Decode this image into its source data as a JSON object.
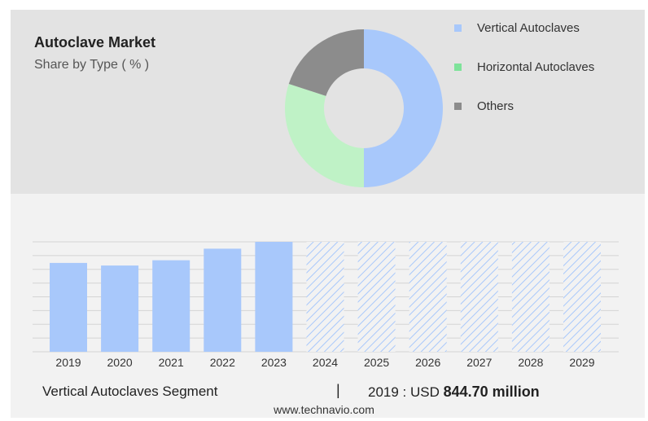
{
  "header": {
    "title": "Autoclave Market",
    "subtitle": "Share by Type ( % )"
  },
  "legend": [
    {
      "label": "Vertical Autoclaves",
      "color": "#a8c8fb"
    },
    {
      "label": "Horizontal Autoclaves",
      "color": "#7ee39a"
    },
    {
      "label": "Others",
      "color": "#8c8c8c"
    }
  ],
  "chart_data": [
    {
      "type": "pie",
      "variant": "donut",
      "categories": [
        "Vertical Autoclaves",
        "Horizontal Autoclaves",
        "Others"
      ],
      "values": [
        50,
        30,
        20
      ],
      "colors": [
        "#a8c8fb",
        "#bff2c6",
        "#8c8c8c"
      ]
    },
    {
      "type": "bar",
      "categories": [
        "2019",
        "2020",
        "2021",
        "2022",
        "2023",
        "2024",
        "2025",
        "2026",
        "2027",
        "2028",
        "2029"
      ],
      "values": [
        844.7,
        820,
        870,
        980,
        1045,
        null,
        null,
        null,
        null,
        null,
        null
      ],
      "forecast_categories": [
        "2024",
        "2025",
        "2026",
        "2027",
        "2028",
        "2029"
      ],
      "forecast_style": "hatched",
      "ylim": [
        0,
        1045
      ],
      "grid": true,
      "color": "#a8c8fb"
    }
  ],
  "footer": {
    "segment": "Vertical Autoclaves Segment",
    "divider": "|",
    "value_prefix": "2019 : USD",
    "value": "844.70 million",
    "url": "www.technavio.com"
  }
}
